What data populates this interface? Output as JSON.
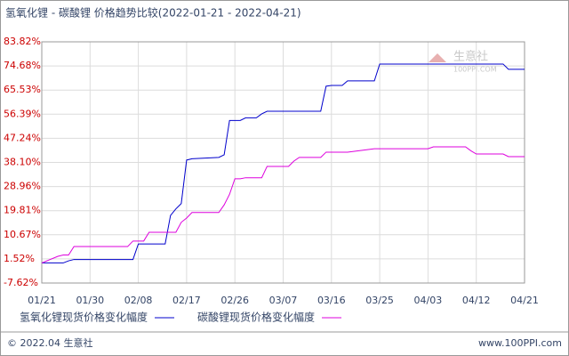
{
  "chart_data": {
    "type": "line",
    "title": "氢氧化锂 - 碳酸锂 价格趋势比较(2022-01-21 - 2022-04-21)",
    "x": [
      "01/21",
      "01/24",
      "01/25",
      "01/26",
      "01/27",
      "02/06",
      "02/07",
      "02/08",
      "02/09",
      "02/10",
      "02/13",
      "02/14",
      "02/15",
      "02/16",
      "02/17",
      "02/18",
      "02/23",
      "02/24",
      "02/25",
      "02/26",
      "02/27",
      "02/28",
      "03/02",
      "03/03",
      "03/04",
      "03/05",
      "03/08",
      "03/09",
      "03/10",
      "03/14",
      "03/15",
      "03/16",
      "03/18",
      "03/19",
      "03/24",
      "03/25",
      "04/03",
      "04/04",
      "04/10",
      "04/11",
      "04/12",
      "04/17",
      "04/18",
      "04/21"
    ],
    "series": [
      {
        "name": "氢氧化锂现货价格变化幅度",
        "color": "#0000cc",
        "values": [
          0,
          0,
          0,
          0.8,
          1.3,
          1.3,
          1.3,
          7.2,
          7.2,
          7.2,
          7.2,
          18,
          20.5,
          22.5,
          39,
          39.5,
          40,
          41,
          54,
          54,
          54,
          55,
          55,
          56.5,
          57.5,
          57.5,
          57.5,
          57.5,
          57.5,
          57.5,
          67,
          67.3,
          67.3,
          69,
          69,
          75.4,
          75.4,
          75.4,
          75.4,
          75.4,
          75.4,
          75.4,
          73.4,
          73.4
        ]
      },
      {
        "name": "碳酸锂现货价格变化幅度",
        "color": "#dd00dd",
        "values": [
          0,
          2.5,
          3,
          3,
          6.2,
          6.2,
          8.3,
          8.3,
          8.3,
          11.6,
          11.6,
          11.6,
          11.6,
          15.4,
          17,
          19.1,
          19.1,
          22,
          26,
          31.9,
          31.9,
          32.3,
          32.3,
          32.3,
          36.6,
          36.6,
          36.6,
          38.6,
          40,
          40,
          42,
          42,
          42,
          42,
          43.3,
          43.3,
          43.3,
          44,
          44,
          42.5,
          41.3,
          41.3,
          40.3,
          40.3
        ]
      }
    ],
    "xlim": [
      "01/21",
      "04/21"
    ],
    "xticks": [
      "01/21",
      "01/30",
      "02/08",
      "02/17",
      "02/26",
      "03/07",
      "03/16",
      "03/25",
      "04/03",
      "04/12",
      "04/21"
    ],
    "ylim": [
      -7.62,
      83.82
    ],
    "yticks": [
      {
        "value": 83.82,
        "label": "83.82%"
      },
      {
        "value": 74.68,
        "label": "74.68%"
      },
      {
        "value": 65.53,
        "label": "65.53%"
      },
      {
        "value": 56.39,
        "label": "56.39%"
      },
      {
        "value": 47.24,
        "label": "47.24%"
      },
      {
        "value": 38.1,
        "label": "38.10%"
      },
      {
        "value": 28.96,
        "label": "28.96%"
      },
      {
        "value": 19.81,
        "label": "19.81%"
      },
      {
        "value": 10.67,
        "label": "10.67%"
      },
      {
        "value": 1.52,
        "label": "1.52%"
      },
      {
        "value": -7.62,
        "label": "-7.62%"
      }
    ],
    "grid": true,
    "watermark": {
      "name": "生意社",
      "site": "100PPI.COM"
    },
    "footer": {
      "left": "© 2022.04 生意社",
      "right": "www.100PPI.com"
    }
  }
}
